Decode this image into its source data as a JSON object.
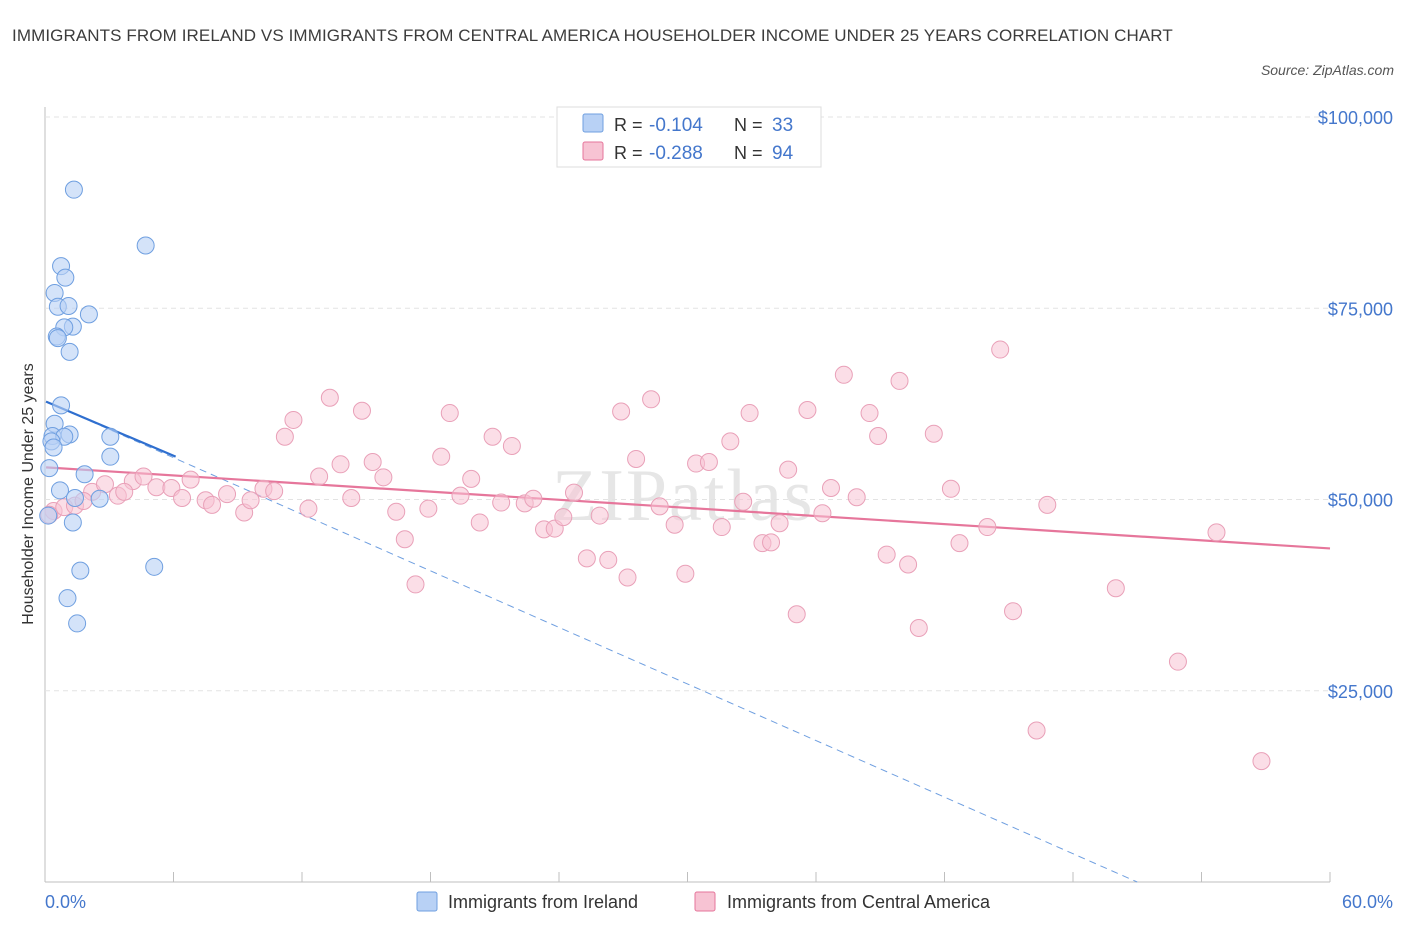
{
  "title": "IMMIGRANTS FROM IRELAND VS IMMIGRANTS FROM CENTRAL AMERICA HOUSEHOLDER INCOME UNDER 25 YEARS CORRELATION CHART",
  "source": "Source: ZipAtlas.com",
  "watermark": "ZIPatlas",
  "colors": {
    "ireland": "#6f9fe0",
    "ireland_fill": "#b8d1f5",
    "central_america": "#e6769b",
    "central_america_fill": "#f7c3d3",
    "accent": "#4477cc"
  },
  "legend": {
    "rows": [
      {
        "r_label": "R =",
        "r_value": "-0.104",
        "n_label": "N =",
        "n_value": "33"
      },
      {
        "r_label": "R =",
        "r_value": "-0.288",
        "n_label": "N =",
        "n_value": "94"
      }
    ]
  },
  "chart_data": {
    "type": "scatter",
    "ylabel": "Householder Income Under 25 years",
    "xlabel": "",
    "xlim": [
      0,
      60
    ],
    "ylim": [
      0,
      100000
    ],
    "x_tick_labels": [
      "0.0%",
      "60.0%"
    ],
    "y_tick_labels": [
      "$100,000",
      "$75,000",
      "$50,000",
      "$25,000"
    ],
    "y_ticks": [
      100000,
      75000,
      50000,
      25000
    ],
    "grid": true,
    "legend_position": "top-center",
    "series": [
      {
        "name": "Immigrants from Ireland",
        "color": "#6f9fe0",
        "trend": {
          "x": [
            0.05,
            6.1
          ],
          "y": [
            62800,
            55600
          ],
          "extrapolated_to": [
            51,
            0
          ]
        },
        "points": [
          [
            1.35,
            90500
          ],
          [
            4.7,
            83200
          ],
          [
            0.75,
            80500
          ],
          [
            0.95,
            79000
          ],
          [
            0.45,
            77000
          ],
          [
            0.6,
            75200
          ],
          [
            1.1,
            75300
          ],
          [
            2.05,
            74200
          ],
          [
            1.3,
            72600
          ],
          [
            0.9,
            72500
          ],
          [
            0.55,
            71300
          ],
          [
            0.6,
            71100
          ],
          [
            1.15,
            69300
          ],
          [
            0.75,
            62300
          ],
          [
            0.45,
            59900
          ],
          [
            0.35,
            58300
          ],
          [
            1.15,
            58500
          ],
          [
            3.05,
            58200
          ],
          [
            0.9,
            58200
          ],
          [
            0.3,
            57600
          ],
          [
            0.4,
            56800
          ],
          [
            3.05,
            55600
          ],
          [
            0.2,
            54100
          ],
          [
            1.85,
            53300
          ],
          [
            0.7,
            51200
          ],
          [
            1.4,
            50200
          ],
          [
            2.55,
            50100
          ],
          [
            0.15,
            47900
          ],
          [
            1.3,
            47000
          ],
          [
            1.65,
            40700
          ],
          [
            5.1,
            41200
          ],
          [
            1.05,
            37100
          ],
          [
            1.5,
            33800
          ]
        ]
      },
      {
        "name": "Immigrants from Central America",
        "color": "#e6769b",
        "trend": {
          "x": [
            0.05,
            60
          ],
          "y": [
            54200,
            43600
          ]
        },
        "points": [
          [
            0.4,
            48500
          ],
          [
            0.9,
            49000
          ],
          [
            1.4,
            49200
          ],
          [
            2.2,
            51000
          ],
          [
            2.8,
            52000
          ],
          [
            3.4,
            50500
          ],
          [
            4.1,
            52400
          ],
          [
            4.6,
            53000
          ],
          [
            5.2,
            51600
          ],
          [
            5.9,
            51500
          ],
          [
            6.4,
            50200
          ],
          [
            6.8,
            52600
          ],
          [
            7.5,
            49900
          ],
          [
            7.8,
            49300
          ],
          [
            8.5,
            50700
          ],
          [
            9.3,
            48300
          ],
          [
            9.6,
            49900
          ],
          [
            10.2,
            51400
          ],
          [
            10.7,
            51100
          ],
          [
            11.2,
            58200
          ],
          [
            11.6,
            60400
          ],
          [
            12.3,
            48800
          ],
          [
            12.8,
            53000
          ],
          [
            13.3,
            63300
          ],
          [
            13.8,
            54600
          ],
          [
            14.3,
            50200
          ],
          [
            14.8,
            61600
          ],
          [
            15.3,
            54900
          ],
          [
            15.8,
            52900
          ],
          [
            16.4,
            48400
          ],
          [
            16.8,
            44800
          ],
          [
            17.3,
            38900
          ],
          [
            17.9,
            48800
          ],
          [
            18.5,
            55600
          ],
          [
            18.9,
            61300
          ],
          [
            19.4,
            50500
          ],
          [
            19.9,
            52700
          ],
          [
            20.3,
            47000
          ],
          [
            20.9,
            58200
          ],
          [
            21.3,
            49600
          ],
          [
            21.8,
            57000
          ],
          [
            22.4,
            49500
          ],
          [
            22.8,
            50100
          ],
          [
            23.3,
            46100
          ],
          [
            23.8,
            46200
          ],
          [
            24.2,
            47700
          ],
          [
            24.7,
            50900
          ],
          [
            25.3,
            42300
          ],
          [
            25.9,
            47900
          ],
          [
            26.3,
            42100
          ],
          [
            26.9,
            61500
          ],
          [
            27.2,
            39800
          ],
          [
            27.6,
            55300
          ],
          [
            28.3,
            63100
          ],
          [
            28.7,
            49100
          ],
          [
            29.4,
            46700
          ],
          [
            29.9,
            40300
          ],
          [
            30.4,
            54700
          ],
          [
            31.0,
            54900
          ],
          [
            31.6,
            46400
          ],
          [
            32.0,
            57600
          ],
          [
            32.6,
            49700
          ],
          [
            32.9,
            61300
          ],
          [
            33.5,
            44300
          ],
          [
            33.9,
            44400
          ],
          [
            34.3,
            46900
          ],
          [
            34.7,
            53900
          ],
          [
            35.1,
            35000
          ],
          [
            35.6,
            61700
          ],
          [
            36.3,
            48200
          ],
          [
            36.7,
            51500
          ],
          [
            37.3,
            66300
          ],
          [
            37.9,
            50300
          ],
          [
            38.5,
            61300
          ],
          [
            38.9,
            58300
          ],
          [
            39.3,
            42800
          ],
          [
            39.9,
            65500
          ],
          [
            40.3,
            41500
          ],
          [
            40.8,
            33200
          ],
          [
            41.5,
            58600
          ],
          [
            42.3,
            51400
          ],
          [
            42.7,
            44300
          ],
          [
            44.0,
            46400
          ],
          [
            44.6,
            69600
          ],
          [
            45.2,
            35400
          ],
          [
            46.3,
            19800
          ],
          [
            46.8,
            49300
          ],
          [
            50.0,
            38400
          ],
          [
            52.9,
            28800
          ],
          [
            54.7,
            45700
          ],
          [
            56.8,
            15800
          ],
          [
            0.2,
            48000
          ],
          [
            1.8,
            49800
          ],
          [
            3.7,
            51000
          ]
        ]
      }
    ]
  }
}
